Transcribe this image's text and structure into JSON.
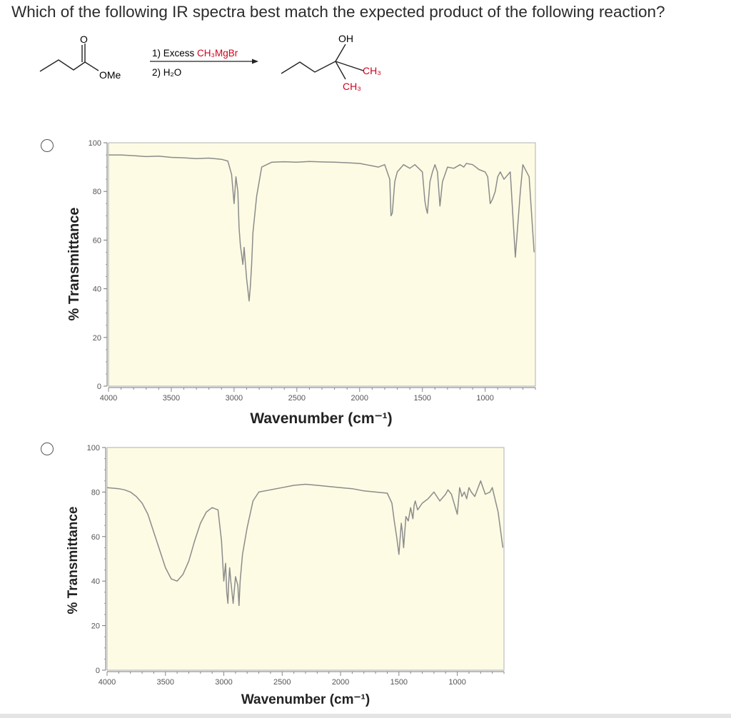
{
  "question": {
    "text": "Which of the following IR spectra best match the expected product of the following reaction?"
  },
  "reaction": {
    "reactant_carbonyl_o": "O",
    "reactant_group": "OMe",
    "reagent_1_prefix": "1) Excess ",
    "reagent_1_compound": "CH₃MgBr",
    "reagent_2": "2) H₂O",
    "product_oh": "OH",
    "product_ch3_a": "CH₃",
    "product_ch3_b": "CH₃",
    "highlight_color": "#d0021b"
  },
  "options": [
    {
      "chart_data": {
        "type": "line",
        "xlabel": "Wavenumber (cm⁻¹)",
        "ylabel": "% Transmittance",
        "xlim": [
          4000,
          600
        ],
        "ylim": [
          0,
          100
        ],
        "xticks": [
          "4000",
          "3500",
          "3000",
          "2500",
          "2000",
          "1500",
          "1000"
        ],
        "yticks": [
          "0",
          "20",
          "40",
          "60",
          "80",
          "100"
        ],
        "background": "#fdfbe4",
        "line_color": "#8c8c8c",
        "x": [
          4000,
          3900,
          3800,
          3700,
          3600,
          3500,
          3400,
          3300,
          3200,
          3100,
          3050,
          3020,
          3000,
          2985,
          2970,
          2960,
          2950,
          2930,
          2920,
          2900,
          2880,
          2870,
          2860,
          2850,
          2820,
          2780,
          2700,
          2600,
          2500,
          2400,
          2300,
          2200,
          2100,
          2000,
          1950,
          1900,
          1850,
          1800,
          1760,
          1750,
          1740,
          1720,
          1700,
          1650,
          1600,
          1560,
          1500,
          1480,
          1470,
          1460,
          1440,
          1420,
          1400,
          1380,
          1360,
          1340,
          1300,
          1250,
          1200,
          1170,
          1150,
          1100,
          1050,
          1000,
          980,
          960,
          940,
          920,
          900,
          880,
          850,
          800,
          760,
          720,
          700,
          650,
          610
        ],
        "y": [
          95,
          95,
          94.7,
          94.3,
          94.5,
          94,
          93.8,
          93.5,
          93.7,
          93.2,
          92.5,
          87,
          75,
          86,
          80,
          65,
          58,
          50,
          57,
          44,
          35,
          41,
          50,
          63,
          78,
          90,
          92,
          92.2,
          92,
          92.3,
          92.1,
          92,
          91.8,
          91.5,
          91,
          90.5,
          90,
          91,
          85,
          70,
          71,
          84,
          88,
          91,
          89.5,
          91,
          88,
          76,
          73,
          71,
          84,
          88,
          91,
          88,
          74,
          84,
          90,
          89.5,
          91,
          90,
          91.5,
          91,
          89,
          88,
          86,
          75,
          77,
          80,
          86,
          88,
          85,
          88,
          53,
          80,
          91,
          86,
          55
        ]
      }
    },
    {
      "chart_data": {
        "type": "line",
        "xlabel": "Wavenumber (cm⁻¹)",
        "ylabel": "% Transmittance",
        "xlim": [
          4000,
          600
        ],
        "ylim": [
          0,
          100
        ],
        "xticks": [
          "4000",
          "3500",
          "3000",
          "2500",
          "2000",
          "1500",
          "1000"
        ],
        "yticks": [
          "0",
          "20",
          "40",
          "60",
          "80",
          "100"
        ],
        "background": "#fdfbe4",
        "line_color": "#8c8c8c",
        "x": [
          4000,
          3900,
          3850,
          3800,
          3750,
          3700,
          3650,
          3600,
          3550,
          3500,
          3450,
          3400,
          3350,
          3300,
          3250,
          3200,
          3150,
          3100,
          3050,
          3020,
          3000,
          2985,
          2975,
          2965,
          2960,
          2950,
          2940,
          2930,
          2920,
          2900,
          2880,
          2870,
          2860,
          2840,
          2800,
          2750,
          2700,
          2600,
          2500,
          2400,
          2300,
          2200,
          2100,
          2000,
          1900,
          1800,
          1700,
          1600,
          1560,
          1540,
          1520,
          1500,
          1480,
          1470,
          1460,
          1440,
          1420,
          1400,
          1380,
          1370,
          1360,
          1340,
          1300,
          1250,
          1200,
          1150,
          1100,
          1080,
          1050,
          1000,
          980,
          960,
          940,
          920,
          900,
          880,
          850,
          800,
          760,
          720,
          700,
          650,
          610
        ],
        "y": [
          82,
          81.5,
          81,
          80,
          78,
          75,
          70,
          62,
          54,
          46,
          41,
          40,
          43,
          49,
          58,
          66,
          71,
          73,
          72,
          58,
          40,
          48,
          35,
          30,
          38,
          46,
          40,
          35,
          30,
          42,
          38,
          29,
          40,
          52,
          64,
          76,
          80,
          81,
          82,
          83,
          83.5,
          83,
          82.5,
          82,
          81.5,
          80.5,
          80,
          79.5,
          75,
          67,
          60,
          52,
          66,
          62,
          55,
          69,
          67,
          73,
          68,
          74,
          76,
          72,
          75,
          77,
          80,
          76,
          79,
          81,
          79,
          70,
          82,
          78,
          80,
          77,
          82,
          80,
          78,
          85,
          79,
          80,
          82,
          71,
          55
        ]
      }
    }
  ]
}
